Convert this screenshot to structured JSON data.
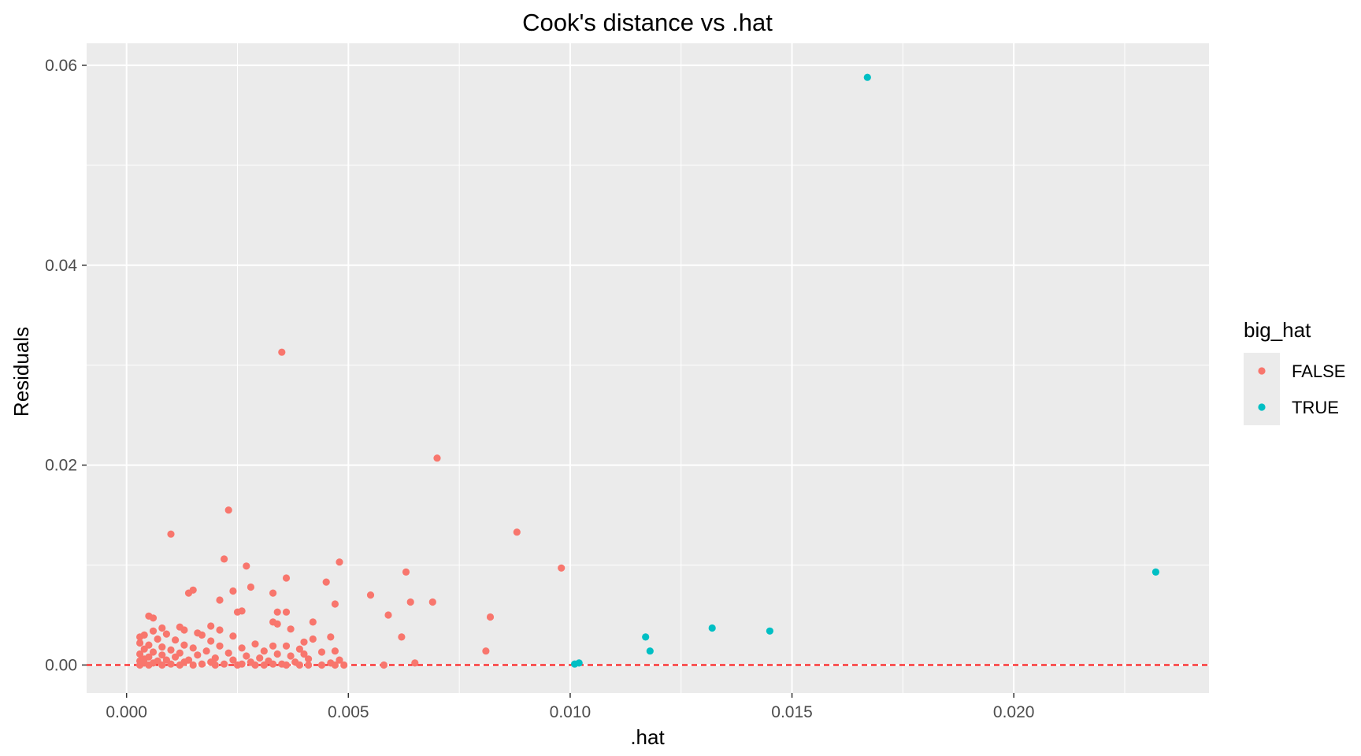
{
  "chart_data": {
    "type": "scatter",
    "title": "Cook's distance vs .hat",
    "xlabel": ".hat",
    "ylabel": "Residuals",
    "xlim": [
      -0.0009,
      0.0244
    ],
    "ylim": [
      -0.0028,
      0.0622
    ],
    "x_ticks": [
      0.0,
      0.005,
      0.01,
      0.015,
      0.02
    ],
    "x_tick_labels": [
      "0.000",
      "0.005",
      "0.010",
      "0.015",
      "0.020"
    ],
    "y_ticks": [
      0.0,
      0.02,
      0.04,
      0.06
    ],
    "y_tick_labels": [
      "0.00",
      "0.02",
      "0.04",
      "0.06"
    ],
    "grid": true,
    "panel_background": "#ebebeb",
    "reference_line": {
      "y": 0,
      "style": "dashed",
      "color": "#ff0000"
    },
    "legend": {
      "title": "big_hat",
      "position": "right"
    },
    "series": [
      {
        "name": "FALSE",
        "color": "#f8766d",
        "points": [
          [
            0.0035,
            0.0313
          ],
          [
            0.007,
            0.0207
          ],
          [
            0.0023,
            0.0155
          ],
          [
            0.001,
            0.0131
          ],
          [
            0.0088,
            0.0133
          ],
          [
            0.0022,
            0.0106
          ],
          [
            0.0048,
            0.0103
          ],
          [
            0.0027,
            0.0099
          ],
          [
            0.0098,
            0.0097
          ],
          [
            0.0063,
            0.0093
          ],
          [
            0.0036,
            0.0087
          ],
          [
            0.0045,
            0.0083
          ],
          [
            0.0028,
            0.0078
          ],
          [
            0.0015,
            0.0075
          ],
          [
            0.0024,
            0.0074
          ],
          [
            0.0014,
            0.0072
          ],
          [
            0.0033,
            0.0072
          ],
          [
            0.0055,
            0.007
          ],
          [
            0.0021,
            0.0065
          ],
          [
            0.0064,
            0.0063
          ],
          [
            0.0069,
            0.0063
          ],
          [
            0.0047,
            0.0061
          ],
          [
            0.0026,
            0.0054
          ],
          [
            0.0036,
            0.0053
          ],
          [
            0.0034,
            0.0053
          ],
          [
            0.0025,
            0.0053
          ],
          [
            0.0059,
            0.005
          ],
          [
            0.0082,
            0.0048
          ],
          [
            0.0005,
            0.0049
          ],
          [
            0.0006,
            0.0047
          ],
          [
            0.0033,
            0.0043
          ],
          [
            0.0042,
            0.0043
          ],
          [
            0.0034,
            0.0041
          ],
          [
            0.0012,
            0.0038
          ],
          [
            0.0019,
            0.0039
          ],
          [
            0.0008,
            0.0037
          ],
          [
            0.0037,
            0.0036
          ],
          [
            0.0021,
            0.0035
          ],
          [
            0.0013,
            0.0035
          ],
          [
            0.0016,
            0.0032
          ],
          [
            0.0006,
            0.0034
          ],
          [
            0.0004,
            0.003
          ],
          [
            0.0003,
            0.0028
          ],
          [
            0.0009,
            0.0031
          ],
          [
            0.0017,
            0.003
          ],
          [
            0.0024,
            0.0029
          ],
          [
            0.0046,
            0.0028
          ],
          [
            0.0062,
            0.0028
          ],
          [
            0.0042,
            0.0026
          ],
          [
            0.0007,
            0.0026
          ],
          [
            0.0011,
            0.0025
          ],
          [
            0.0019,
            0.0024
          ],
          [
            0.004,
            0.0023
          ],
          [
            0.0029,
            0.0021
          ],
          [
            0.0003,
            0.0022
          ],
          [
            0.0005,
            0.002
          ],
          [
            0.0013,
            0.002
          ],
          [
            0.0021,
            0.0019
          ],
          [
            0.0033,
            0.0019
          ],
          [
            0.0036,
            0.0019
          ],
          [
            0.0008,
            0.0018
          ],
          [
            0.0015,
            0.0017
          ],
          [
            0.0026,
            0.0017
          ],
          [
            0.0039,
            0.0016
          ],
          [
            0.0004,
            0.0016
          ],
          [
            0.001,
            0.0015
          ],
          [
            0.0018,
            0.0014
          ],
          [
            0.0031,
            0.0014
          ],
          [
            0.0081,
            0.0014
          ],
          [
            0.0047,
            0.0014
          ],
          [
            0.0044,
            0.0013
          ],
          [
            0.0006,
            0.0013
          ],
          [
            0.0012,
            0.0012
          ],
          [
            0.0023,
            0.0012
          ],
          [
            0.0034,
            0.0011
          ],
          [
            0.004,
            0.0011
          ],
          [
            0.0003,
            0.0011
          ],
          [
            0.0008,
            0.001
          ],
          [
            0.0016,
            0.001
          ],
          [
            0.0027,
            0.0009
          ],
          [
            0.0037,
            0.0009
          ],
          [
            0.0005,
            0.0008
          ],
          [
            0.0011,
            0.0008
          ],
          [
            0.002,
            0.0007
          ],
          [
            0.003,
            0.0007
          ],
          [
            0.0041,
            0.0006
          ],
          [
            0.0004,
            0.0006
          ],
          [
            0.0009,
            0.0005
          ],
          [
            0.0014,
            0.0005
          ],
          [
            0.0024,
            0.0005
          ],
          [
            0.0032,
            0.0004
          ],
          [
            0.0048,
            0.0005
          ],
          [
            0.0003,
            0.0004
          ],
          [
            0.0007,
            0.0004
          ],
          [
            0.0013,
            0.0003
          ],
          [
            0.0019,
            0.0003
          ],
          [
            0.0028,
            0.0003
          ],
          [
            0.0038,
            0.0003
          ],
          [
            0.0046,
            0.0002
          ],
          [
            0.0065,
            0.0002
          ],
          [
            0.0004,
            0.0002
          ],
          [
            0.0006,
            0.0002
          ],
          [
            0.001,
            0.0001
          ],
          [
            0.0017,
            0.0001
          ],
          [
            0.0022,
            0.0001
          ],
          [
            0.0026,
            0.0001
          ],
          [
            0.0033,
            0.0001
          ],
          [
            0.0035,
            0.0001
          ],
          [
            0.0041,
            0.0
          ],
          [
            0.0047,
            0.0
          ],
          [
            0.0058,
            0.0
          ],
          [
            0.0003,
            0.0
          ],
          [
            0.0005,
            0.0
          ],
          [
            0.0008,
            0.0
          ],
          [
            0.0012,
            0.0
          ],
          [
            0.0015,
            0.0
          ],
          [
            0.002,
            0.0
          ],
          [
            0.0025,
            0.0
          ],
          [
            0.0029,
            0.0
          ],
          [
            0.0031,
            0.0
          ],
          [
            0.0036,
            0.0
          ],
          [
            0.0039,
            0.0
          ],
          [
            0.0044,
            0.0
          ],
          [
            0.0049,
            0.0
          ]
        ]
      },
      {
        "name": "TRUE",
        "color": "#00bfc4",
        "points": [
          [
            0.0167,
            0.0588
          ],
          [
            0.0232,
            0.0093
          ],
          [
            0.0132,
            0.0037
          ],
          [
            0.0145,
            0.0034
          ],
          [
            0.0117,
            0.0028
          ],
          [
            0.0118,
            0.0014
          ],
          [
            0.0101,
            0.0001
          ],
          [
            0.0102,
            0.0002
          ]
        ]
      }
    ]
  }
}
